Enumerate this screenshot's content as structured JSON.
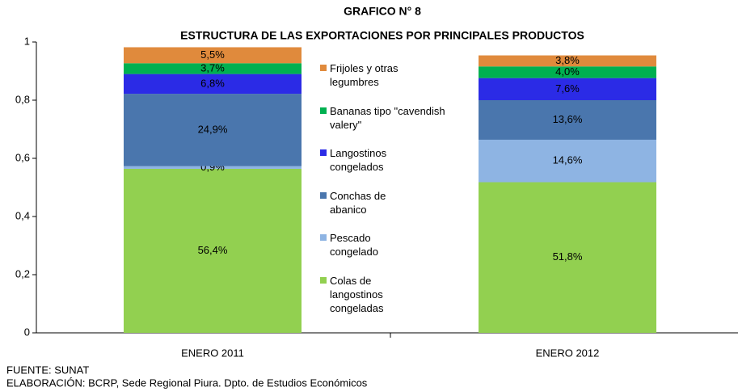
{
  "chart_data": {
    "type": "stacked_bar",
    "title": "GRAFICO N°  8",
    "subtitle": "ESTRUCTURA DE LAS EXPORTACIONES POR PRINCIPALES  PRODUCTOS",
    "categories": [
      "ENERO 2011",
      "ENERO 2012"
    ],
    "series": [
      {
        "name": "Colas de langostinos congeladas",
        "color": "#92d050",
        "values": [
          0.564,
          0.518
        ],
        "value_labels": [
          "56,4%",
          "51,8%"
        ]
      },
      {
        "name": "Pescado congelado",
        "color": "#8eb4e3",
        "values": [
          0.009,
          0.146
        ],
        "value_labels": [
          "0,9%",
          "14,6%"
        ]
      },
      {
        "name": "Conchas de abanico",
        "color": "#4a76ad",
        "values": [
          0.249,
          0.136
        ],
        "value_labels": [
          "24,9%",
          "13,6%"
        ]
      },
      {
        "name": "Langostinos congelados",
        "color": "#2b2be6",
        "values": [
          0.068,
          0.076
        ],
        "value_labels": [
          "6,8%",
          "7,6%"
        ]
      },
      {
        "name": "Bananas tipo \"cavendish valery\"",
        "color": "#00b050",
        "values": [
          0.037,
          0.04
        ],
        "value_labels": [
          "3,7%",
          "4,0%"
        ]
      },
      {
        "name": "Frijoles y otras legumbres",
        "color": "#e08a3c",
        "values": [
          0.055,
          0.038
        ],
        "value_labels": [
          "5,5%",
          "3,8%"
        ]
      }
    ],
    "ylim": [
      0,
      1
    ],
    "yticks": [
      0,
      {
        "value": 0.2,
        "label": "0,2"
      },
      {
        "value": 0.4,
        "label": "0,4"
      },
      {
        "value": 0.6,
        "label": "0,6"
      },
      {
        "value": 0.8,
        "label": "0,8"
      },
      1
    ],
    "source": "FUENTE: SUNAT",
    "note": "ELABORACIÓN: BCRP, Sede Regional Piura. Dpto. de Estudios Económicos"
  }
}
